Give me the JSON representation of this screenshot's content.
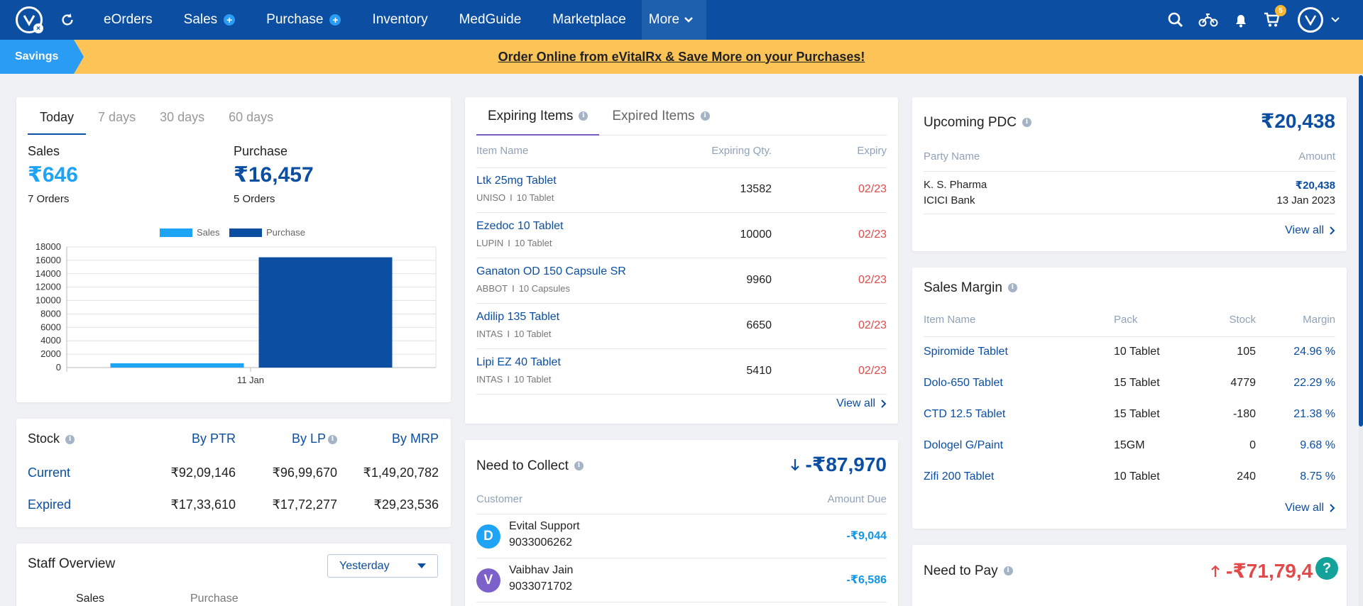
{
  "nav": {
    "items": [
      {
        "label": "eOrders",
        "plus": false
      },
      {
        "label": "Sales",
        "plus": true
      },
      {
        "label": "Purchase",
        "plus": true
      },
      {
        "label": "Inventory",
        "plus": false
      },
      {
        "label": "MedGuide",
        "plus": false
      },
      {
        "label": "Marketplace",
        "plus": false
      }
    ],
    "more_label": "More",
    "cart_count": "5"
  },
  "banner": {
    "tag": "Savings",
    "link_text": "Order Online from eVitalRx & Save More on your Purchases!"
  },
  "summary": {
    "tabs": [
      "Today",
      "7 days",
      "30 days",
      "60 days"
    ],
    "sales_label": "Sales",
    "sales_value": "₹646",
    "sales_orders": "7 Orders",
    "purchase_label": "Purchase",
    "purchase_value": "₹16,457",
    "purchase_orders": "5 Orders"
  },
  "chart_data": {
    "type": "bar",
    "categories": [
      "11 Jan"
    ],
    "series": [
      {
        "name": "Sales",
        "values": [
          646
        ],
        "color": "#1ea3f5"
      },
      {
        "name": "Purchase",
        "values": [
          16457
        ],
        "color": "#0b4ea2"
      }
    ],
    "ylim": [
      0,
      18000
    ],
    "yticks": [
      "0",
      "2000",
      "4000",
      "6000",
      "8000",
      "10000",
      "12000",
      "14000",
      "16000",
      "18000"
    ],
    "legend": "top",
    "grid": true
  },
  "stock": {
    "title": "Stock",
    "headers": [
      "By PTR",
      "By LP",
      "By MRP"
    ],
    "rows": [
      {
        "label": "Current",
        "values": [
          "₹92,09,146",
          "₹96,99,670",
          "₹1,49,20,782"
        ]
      },
      {
        "label": "Expired",
        "values": [
          "₹17,33,610",
          "₹17,72,277",
          "₹29,23,536"
        ]
      }
    ]
  },
  "staff": {
    "title": "Staff Overview",
    "filter": "Yesterday",
    "col1": "Sales",
    "col2": "Purchase"
  },
  "expiring": {
    "tabs": [
      "Expiring Items",
      "Expired Items"
    ],
    "headers": [
      "Item Name",
      "Expiring Qty.",
      "Expiry"
    ],
    "rows": [
      {
        "name": "Ltk 25mg Tablet",
        "maker": "UNISO",
        "pack": "10 Tablet",
        "qty": "13582",
        "expiry": "02/23"
      },
      {
        "name": "Ezedoc 10 Tablet",
        "maker": "LUPIN",
        "pack": "10 Tablet",
        "qty": "10000",
        "expiry": "02/23"
      },
      {
        "name": "Ganaton OD 150 Capsule SR",
        "maker": "ABBOT",
        "pack": "10 Capsules",
        "qty": "9960",
        "expiry": "02/23"
      },
      {
        "name": "Adilip 135 Tablet",
        "maker": "INTAS",
        "pack": "10 Tablet",
        "qty": "6650",
        "expiry": "02/23"
      },
      {
        "name": "Lipi EZ 40 Tablet",
        "maker": "INTAS",
        "pack": "10 Tablet",
        "qty": "5410",
        "expiry": "02/23"
      }
    ],
    "view_all": "View all"
  },
  "collect": {
    "title": "Need to Collect",
    "total": "-₹87,970",
    "headers": [
      "Customer",
      "Amount Due"
    ],
    "rows": [
      {
        "initial": "D",
        "name": "Evital Support",
        "phone": "9033006262",
        "amount": "-₹9,044",
        "color": "#1ea3f5"
      },
      {
        "initial": "V",
        "name": "Vaibhav Jain",
        "phone": "9033071702",
        "amount": "-₹6,586",
        "color": "#7b61c9"
      }
    ]
  },
  "pdc": {
    "title": "Upcoming PDC",
    "total": "₹20,438",
    "headers": [
      "Party Name",
      "Amount"
    ],
    "party": "K. S. Pharma",
    "bank": "ICICI Bank",
    "amount": "₹20,438",
    "date": "13 Jan 2023",
    "view_all": "View all"
  },
  "margin": {
    "title": "Sales Margin",
    "headers": [
      "Item Name",
      "Pack",
      "Stock",
      "Margin"
    ],
    "rows": [
      {
        "name": "Spiromide Tablet",
        "pack": "10 Tablet",
        "stock": "105",
        "margin": "24.96 %"
      },
      {
        "name": "Dolo-650 Tablet",
        "pack": "15 Tablet",
        "stock": "4779",
        "margin": "22.29 %"
      },
      {
        "name": "CTD 12.5 Tablet",
        "pack": "15 Tablet",
        "stock": "-180",
        "margin": "21.38 %"
      },
      {
        "name": "Dologel G/Paint",
        "pack": "15GM",
        "stock": "0",
        "margin": "9.68 %"
      },
      {
        "name": "Zifi 200 Tablet",
        "pack": "10 Tablet",
        "stock": "240",
        "margin": "8.75 %"
      }
    ],
    "view_all": "View all"
  },
  "pay": {
    "title": "Need to Pay",
    "total": "-₹71,79,4"
  },
  "help": {
    "label": "?"
  }
}
